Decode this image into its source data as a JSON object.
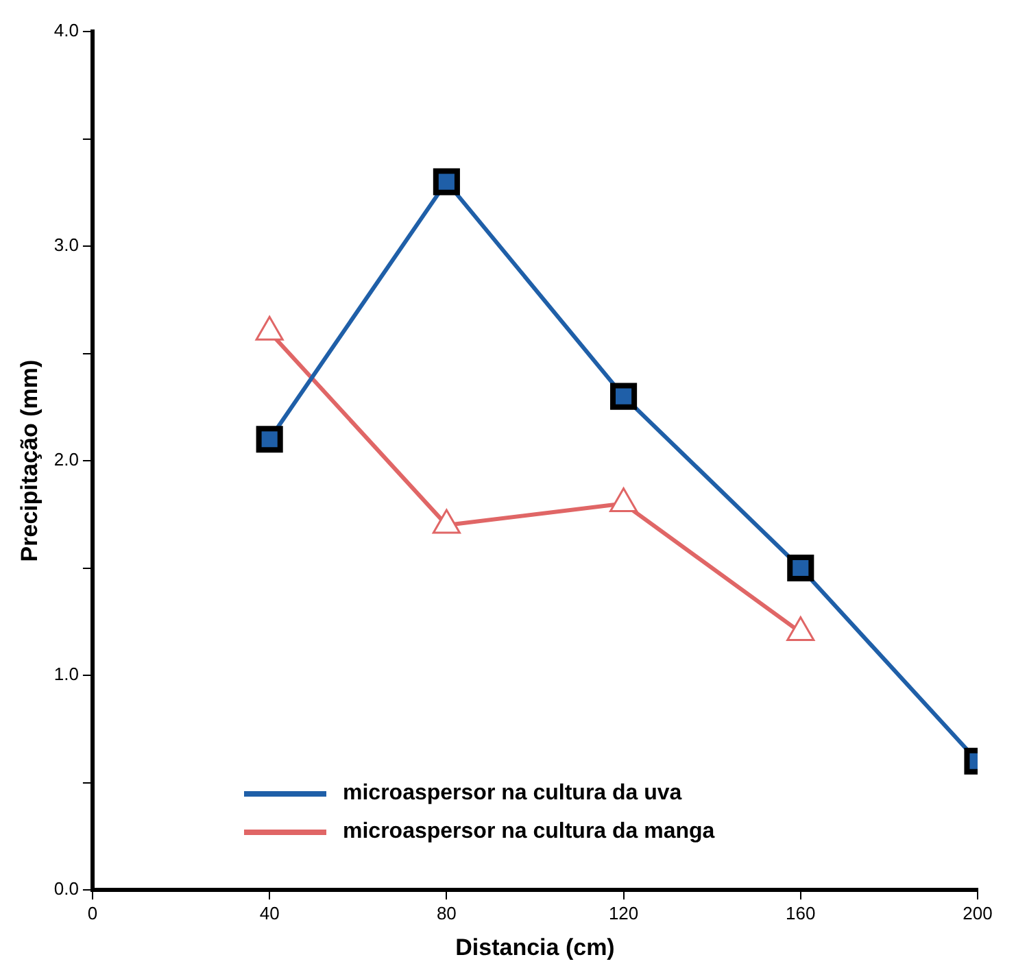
{
  "chart_data": {
    "type": "line",
    "xlabel": "Distancia (cm)",
    "ylabel": "Precipitação (mm)",
    "xlim": [
      0,
      200
    ],
    "xticks": [
      0,
      40,
      80,
      120,
      160,
      200
    ],
    "ylim": [
      0,
      4
    ],
    "yticks": [
      {
        "value": 0,
        "label": "0.0"
      },
      {
        "value": 0.5,
        "label": null
      },
      {
        "value": 1,
        "label": "1.0"
      },
      {
        "value": 1.5,
        "label": null
      },
      {
        "value": 2,
        "label": "2.0"
      },
      {
        "value": 2.5,
        "label": null
      },
      {
        "value": 3,
        "label": "3.0"
      },
      {
        "value": 3.5,
        "label": null
      },
      {
        "value": 4,
        "label": "4.0"
      }
    ],
    "grid": false,
    "legend": "bottom left",
    "line_style": "solid",
    "series": [
      {
        "name": "microaspersor na cultura da uva",
        "color": "#1f5fa8",
        "marker": "square",
        "x": [
          40,
          80,
          120,
          160,
          200
        ],
        "values": [
          2.1,
          3.3,
          2.3,
          1.5,
          0.6
        ]
      },
      {
        "name": "microaspersor na cultura da manga",
        "color": "#e06666",
        "marker": "triangle",
        "x": [
          40,
          80,
          120,
          160
        ],
        "values": [
          2.6,
          1.7,
          1.8,
          1.2
        ]
      }
    ]
  }
}
